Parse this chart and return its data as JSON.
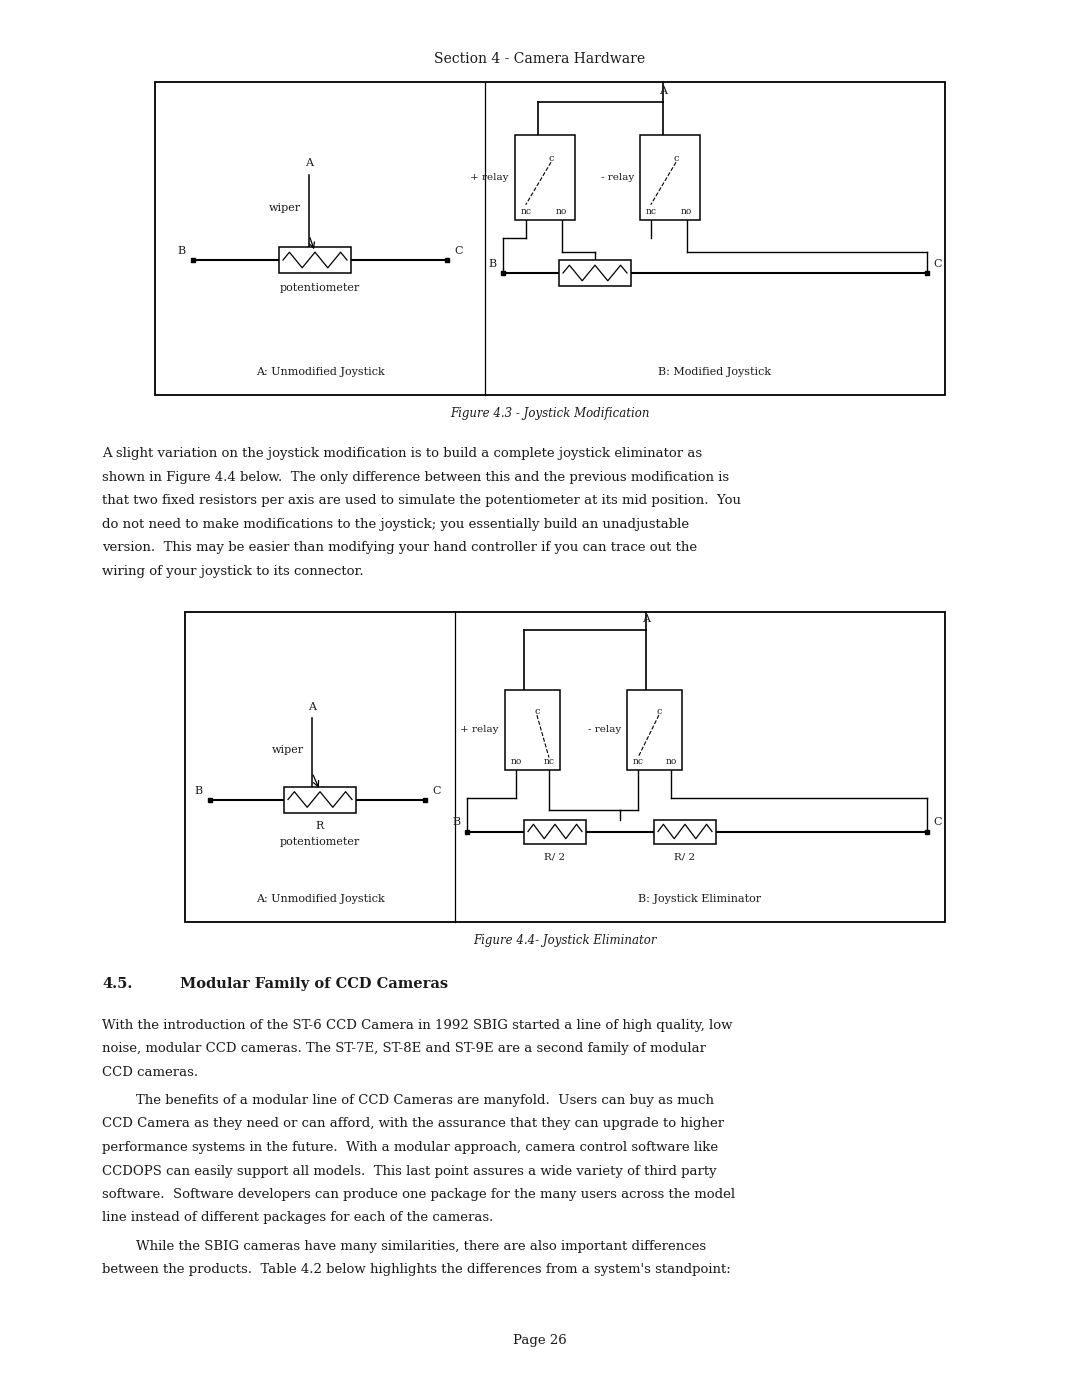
{
  "page_width": 10.8,
  "page_height": 13.97,
  "bg_color": "#ffffff",
  "section_title": "Section 4 - Camera Hardware",
  "fig43_caption": "Figure 4.3 - Joystick Modification",
  "fig44_caption": "Figure 4.4- Joystick Eliminator",
  "para1_lines": [
    "A slight variation on the joystick modification is to build a complete joystick eliminator as",
    "shown in Figure 4.4 below.  The only difference between this and the previous modification is",
    "that two fixed resistors per axis are used to simulate the potentiometer at its mid position.  You",
    "do not need to make modifications to the joystick; you essentially build an unadjustable",
    "version.  This may be easier than modifying your hand controller if you can trace out the",
    "wiring of your joystick to its connector."
  ],
  "para2_lines": [
    "With the introduction of the ST-6 CCD Camera in 1992 SBIG started a line of high quality, low",
    "noise, modular CCD cameras. The ST-7E, ST-8E and ST-9E are a second family of modular",
    "CCD cameras."
  ],
  "para3_lines": [
    "        The benefits of a modular line of CCD Cameras are manyfold.  Users can buy as much",
    "CCD Camera as they need or can afford, with the assurance that they can upgrade to higher",
    "performance systems in the future.  With a modular approach, camera control software like",
    "CCDOPS can easily support all models.  This last point assures a wide variety of third party",
    "software.  Software developers can produce one package for the many users across the model",
    "line instead of different packages for each of the cameras."
  ],
  "para4_lines": [
    "        While the SBIG cameras have many similarities, there are also important differences",
    "between the products.  Table 4.2 below highlights the differences from a system's standpoint:"
  ],
  "page_num": "Page 26",
  "font_family": "DejaVu Serif",
  "text_color": "#1a1a1a",
  "font_size_body": 9.5,
  "font_size_small": 8.5,
  "font_size_caption": 8.5
}
